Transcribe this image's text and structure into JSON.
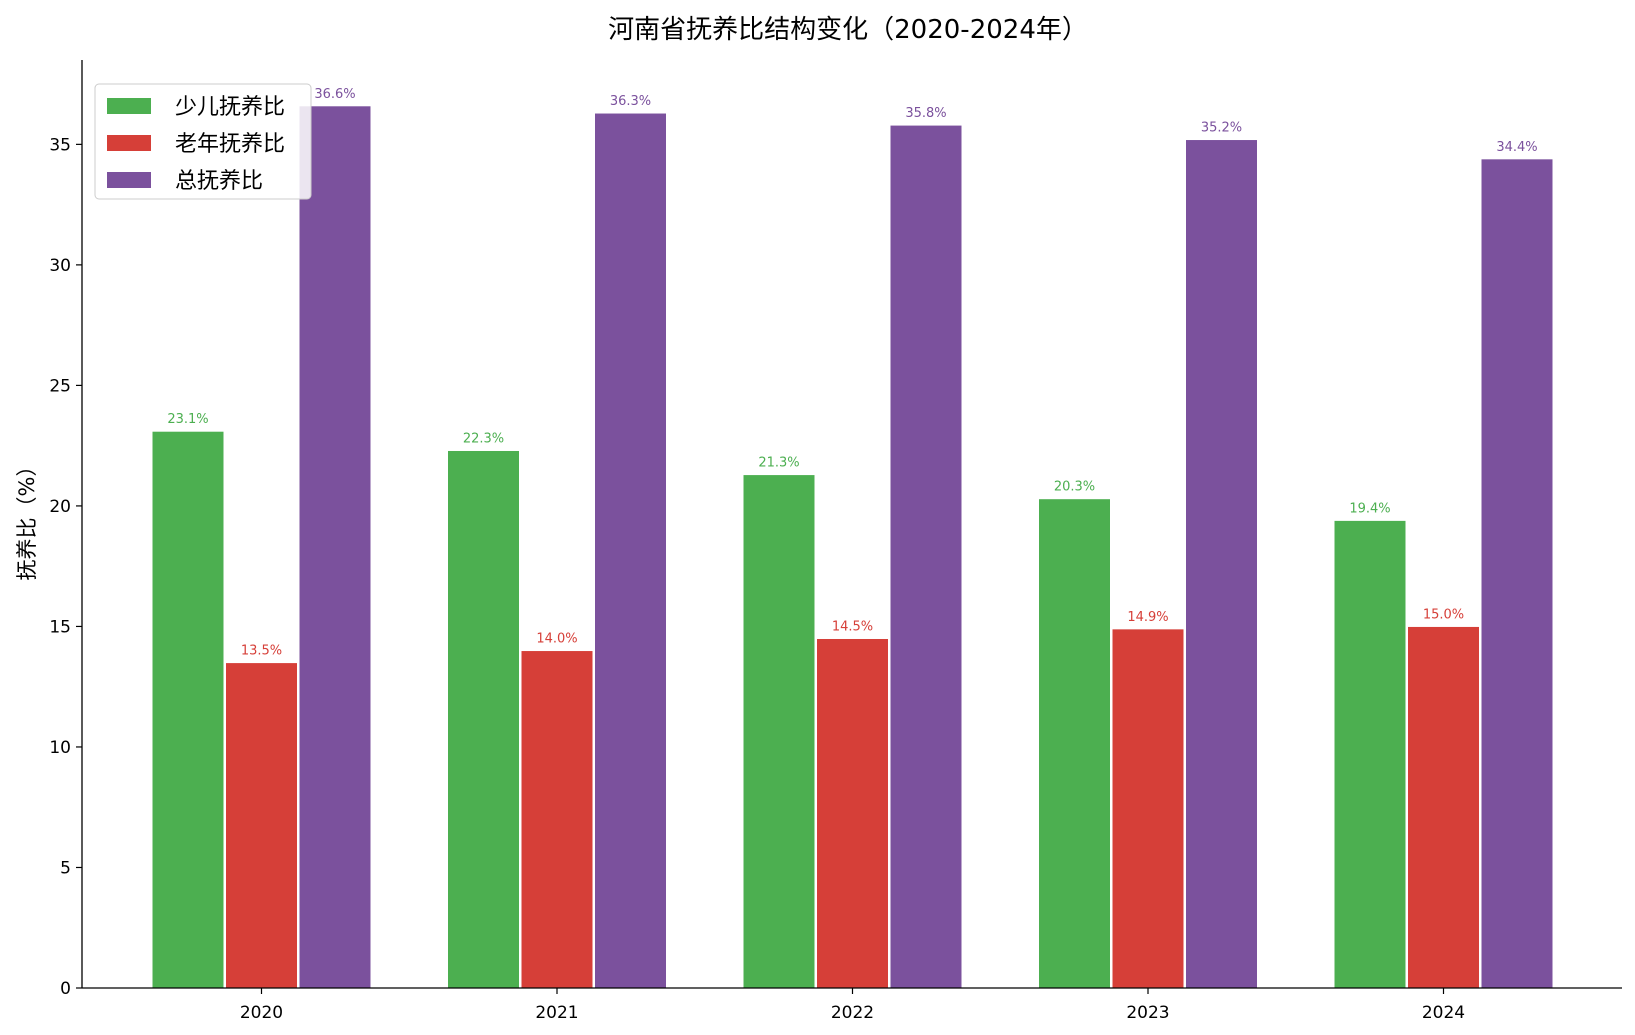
{
  "chart_data": {
    "type": "bar",
    "title": "河南省抚养比结构变化（2020-2024年）",
    "xlabel": "",
    "ylabel": "抚养比（%）",
    "categories": [
      "2020",
      "2021",
      "2022",
      "2023",
      "2024"
    ],
    "ylim": [
      0,
      38.5
    ],
    "yticks": [
      0,
      5,
      10,
      15,
      20,
      25,
      30,
      35
    ],
    "grid": false,
    "legend_position": "top-left",
    "series": [
      {
        "name": "少儿抚养比",
        "color": "#4caf50",
        "values": [
          23.1,
          22.3,
          21.3,
          20.3,
          19.4
        ],
        "labels": [
          "23.1%",
          "22.3%",
          "21.3%",
          "20.3%",
          "19.4%"
        ]
      },
      {
        "name": "老年抚养比",
        "color": "#d63f38",
        "values": [
          13.5,
          14.0,
          14.5,
          14.9,
          15.0
        ],
        "labels": [
          "13.5%",
          "14.0%",
          "14.5%",
          "14.9%",
          "15.0%"
        ]
      },
      {
        "name": "总抚养比",
        "color": "#7b519d",
        "values": [
          36.6,
          36.3,
          35.8,
          35.2,
          34.4
        ],
        "labels": [
          "36.6%",
          "36.3%",
          "35.8%",
          "35.2%",
          "34.4%"
        ]
      }
    ]
  }
}
